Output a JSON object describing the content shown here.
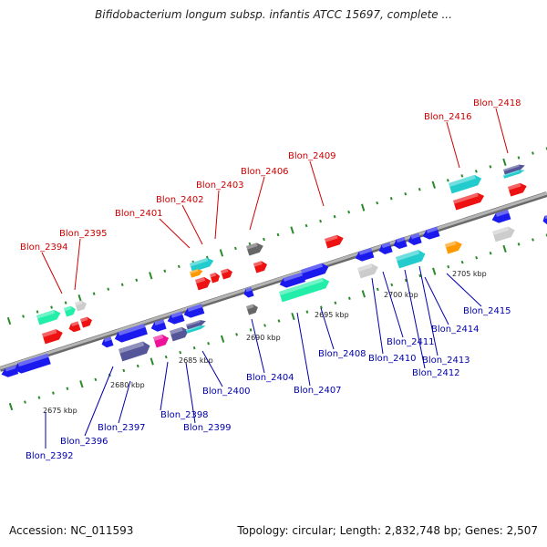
{
  "header": {
    "title": "Bifidobacterium longum subsp. infantis ATCC 15697, complete ..."
  },
  "footer": {
    "accession": "Accession: NC_011593",
    "topology": "Topology: circular; Length: 2,832,748 bp; Genes: 2,507"
  },
  "colors": {
    "forward_label": "#cc0000",
    "reverse_label": "#0000aa",
    "backbone": "#8a8a8a",
    "tick": "#2a8a2a",
    "red": "#ee1111",
    "blue": "#1a1aee",
    "cyan": "#22cccc",
    "green": "#22eeaa",
    "gray": "#cccccc",
    "darkgray": "#666666",
    "orange": "#ff9900",
    "magenta": "#ee1199",
    "purple": "#555599"
  },
  "scale_labels": [
    "2675 kbp",
    "2680 kbp",
    "2685 kbp",
    "2690 kbp",
    "2695 kbp",
    "2700 kbp",
    "2705 kbp"
  ],
  "forward_labels": [
    "Blon_2394",
    "Blon_2395",
    "Blon_2401",
    "Blon_2402",
    "Blon_2403",
    "Blon_2406",
    "Blon_2409",
    "Blon_2416",
    "Blon_2418"
  ],
  "reverse_labels": [
    "Blon_2392",
    "Blon_2396",
    "Blon_2397",
    "Blon_2398",
    "Blon_2399",
    "Blon_2400",
    "Blon_2404",
    "Blon_2407",
    "Blon_2408",
    "Blon_2410",
    "Blon_2411",
    "Blon_2412",
    "Blon_2413",
    "Blon_2414",
    "Blon_2415"
  ]
}
